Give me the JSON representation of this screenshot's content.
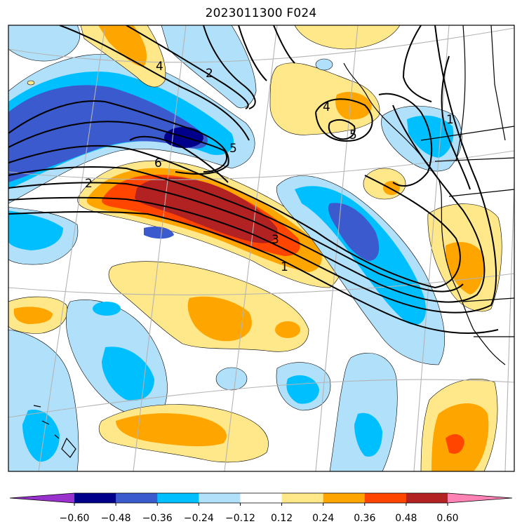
{
  "title": "2023011300 F024",
  "colorbar": {
    "tick_labels": [
      "−0.60",
      "−0.48",
      "−0.36",
      "−0.24",
      "−0.12",
      "0.12",
      "0.24",
      "0.36",
      "0.48",
      "0.60"
    ],
    "colors": [
      "#9932cc",
      "#00008b",
      "#3a5acd",
      "#00bfff",
      "#b0e0fa",
      "#ffffff",
      "#ffe88a",
      "#ffa500",
      "#ff4500",
      "#b22222",
      "#ff82b4"
    ],
    "extend": "both"
  },
  "contour_labels": [
    "4",
    "2",
    "4",
    "5",
    "5",
    "6",
    "2",
    "3",
    "1",
    "1"
  ],
  "colors": {
    "land_outline": "#000000",
    "graticule": "#b4b4b4",
    "contour": "#000000"
  }
}
